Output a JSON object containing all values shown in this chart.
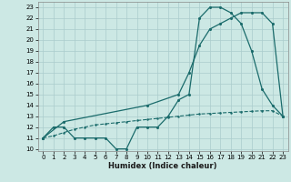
{
  "xlabel": "Humidex (Indice chaleur)",
  "bg_color": "#cce8e4",
  "grid_color": "#aacccc",
  "line_color": "#1a6b6b",
  "xlim": [
    -0.5,
    23.5
  ],
  "ylim": [
    9.8,
    23.5
  ],
  "xticks": [
    0,
    1,
    2,
    3,
    4,
    5,
    6,
    7,
    8,
    9,
    10,
    11,
    12,
    13,
    14,
    15,
    16,
    17,
    18,
    19,
    20,
    21,
    22,
    23
  ],
  "yticks": [
    10,
    11,
    12,
    13,
    14,
    15,
    16,
    17,
    18,
    19,
    20,
    21,
    22,
    23
  ],
  "line1_x": [
    0,
    1,
    2,
    3,
    4,
    5,
    6,
    7,
    8,
    9,
    10,
    11,
    12,
    13,
    14,
    15,
    16,
    17,
    18,
    19,
    20,
    21,
    22,
    23
  ],
  "line1_y": [
    11,
    12,
    12,
    11,
    11,
    11,
    11,
    10,
    10,
    12,
    12,
    12,
    13,
    14.5,
    15,
    22,
    23,
    23,
    22.5,
    21.5,
    19,
    15.5,
    14,
    13
  ],
  "line2_x": [
    0,
    2,
    10,
    13,
    14,
    15,
    16,
    17,
    18,
    19,
    20,
    21,
    22,
    23
  ],
  "line2_y": [
    11,
    12.5,
    14,
    15,
    17,
    19.5,
    21,
    21.5,
    22,
    22.5,
    22.5,
    22.5,
    21.5,
    13
  ],
  "line3_x": [
    0,
    1,
    2,
    3,
    4,
    5,
    6,
    7,
    8,
    9,
    10,
    11,
    12,
    13,
    14,
    15,
    16,
    17,
    18,
    19,
    20,
    21,
    22,
    23
  ],
  "line3_y": [
    11,
    11.2,
    11.5,
    11.8,
    12.0,
    12.2,
    12.3,
    12.4,
    12.5,
    12.6,
    12.7,
    12.8,
    12.9,
    13.0,
    13.1,
    13.2,
    13.25,
    13.3,
    13.35,
    13.4,
    13.45,
    13.5,
    13.5,
    13.0
  ]
}
